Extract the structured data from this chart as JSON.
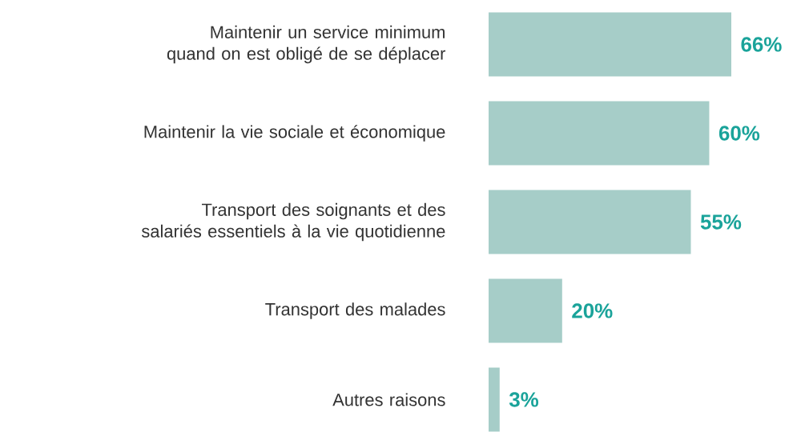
{
  "chart_data": {
    "type": "bar",
    "orientation": "horizontal",
    "data_labels": true,
    "color": "#a6cdc8",
    "categories": [
      "Maintenir un service minimum quand on est obligé de se déplacer",
      "Maintenir la vie sociale et économique",
      "Transport des soignants et des salariés essentiels à la vie quotidienne",
      "Transport des malades",
      "Autres raisons"
    ],
    "values": [
      66,
      60,
      55,
      20,
      3
    ],
    "value_labels": [
      "66%",
      "60%",
      "55%",
      "20%",
      "3%"
    ]
  }
}
